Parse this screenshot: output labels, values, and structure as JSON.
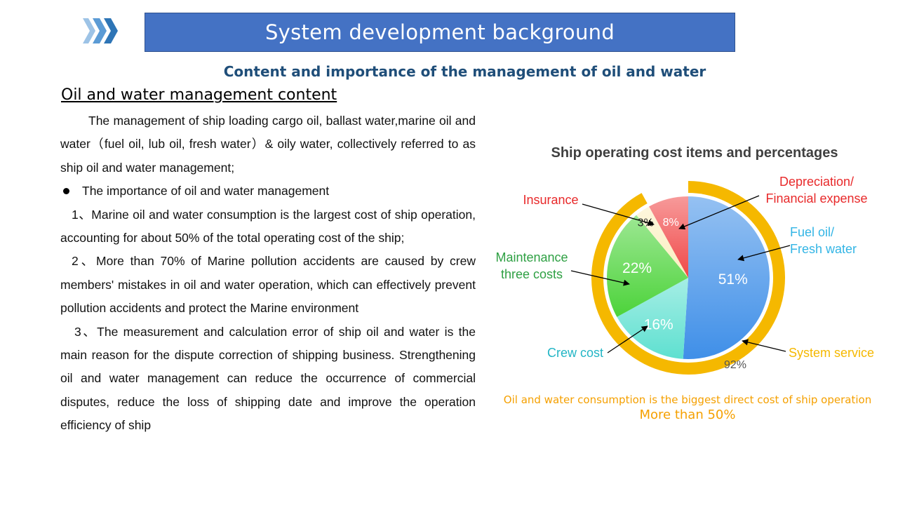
{
  "header": {
    "title": "System development background",
    "subtitle": "Content and importance of the management of oil and water"
  },
  "section": {
    "heading": "Oil and water management content",
    "intro": "The management of ship loading cargo oil, ballast water,marine oil and water（fuel oil, lub oil, fresh water）& oily water, collectively referred to as ship oil and water management;",
    "bullet": "The importance of oil and water management",
    "points": [
      "1、Marine oil and water consumption is the largest cost of ship operation, accounting for about 50% of the total operating cost of the ship;",
      "2、More than 70% of Marine pollution accidents are caused by crew members' mistakes in oil and water operation, which can effectively prevent pollution accidents and protect the Marine environment",
      "3、The measurement and calculation error of ship oil and water is the main reason for the dispute correction of shipping business. Strengthening oil and water management can reduce the occurrence of commercial disputes, reduce the loss of shipping date and improve the operation efficiency of ship"
    ]
  },
  "chart_data": {
    "type": "pie",
    "title": "Ship operating cost items and percentages",
    "slices": [
      {
        "label": "Fuel oil/\nFresh water",
        "value": 51,
        "value_label": "51%",
        "color": "#3f8fe8"
      },
      {
        "label": "Crew cost",
        "value": 16,
        "value_label": "16%",
        "color": "#5ee0d0"
      },
      {
        "label": "Maintenance\nthree costs",
        "value": 22,
        "value_label": "22%",
        "color": "#4cd33a"
      },
      {
        "label": "Insurance",
        "value": 3,
        "value_label": "3%",
        "color": "#fbefc0"
      },
      {
        "label": "Depreciation/\nFinancial expense",
        "value": 8,
        "value_label": "8%",
        "color": "#f04848"
      }
    ],
    "outer_ring": {
      "label": "System service",
      "value": 92,
      "value_label": "92%",
      "color": "#f5b800"
    },
    "label_colors": {
      "Fuel oil/\nFresh water": "#33b5e5",
      "Crew cost": "#22b5c5",
      "Maintenance\nthree costs": "#2ea043",
      "Insurance": "#e8292a",
      "Depreciation/\nFinancial expense": "#e8292a",
      "System service": "#f5b800"
    },
    "note": "Oil and water consumption is the biggest direct cost of ship operation",
    "note_emphasis": "More than 50%"
  }
}
